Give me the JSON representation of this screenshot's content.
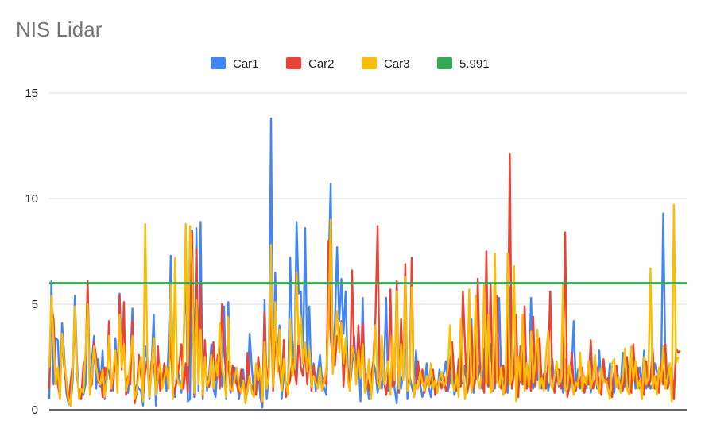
{
  "chart_data": {
    "type": "line",
    "title": "NIS Lidar",
    "xlabel": "",
    "ylabel": "",
    "ylim": [
      0,
      15
    ],
    "yticks": [
      "0",
      "5",
      "10",
      "15"
    ],
    "grid": true,
    "legend_position": "top",
    "n_points": 300,
    "threshold": {
      "name": "5.991",
      "value": 5.991,
      "color": "#34a853"
    },
    "series": [
      {
        "name": "Car1",
        "color": "#4285f4",
        "values": [
          0.5,
          6.1,
          1.2,
          3.4,
          3.3,
          1.0,
          4.1,
          2.6,
          0.8,
          0.3,
          0.2,
          1.4,
          5.4,
          2.2,
          0.6,
          1.0,
          0.7,
          1.2,
          5.9,
          0.9,
          2.3,
          3.5,
          1.0,
          2.4,
          1.1,
          2.8,
          0.5,
          2.0,
          1.8,
          1.2,
          0.9,
          3.4,
          1.2,
          5.5,
          2.1,
          3.0,
          1.0,
          0.8,
          2.2,
          4.8,
          0.6,
          1.2,
          1.0,
          0.9,
          0.2,
          3.0,
          2.4,
          0.5,
          2.1,
          4.5,
          0.2,
          1.8,
          1.0,
          1.2,
          2.2,
          0.9,
          3.1,
          7.3,
          1.2,
          0.6,
          2.0,
          1.5,
          0.8,
          3.1,
          7.0,
          0.4,
          0.5,
          8.5,
          0.6,
          8.6,
          0.9,
          8.9,
          0.5,
          2.8,
          0.9,
          1.7,
          3.1,
          1.0,
          0.6,
          2.1,
          3.4,
          1.1,
          4.9,
          0.5,
          5.1,
          0.8,
          1.1,
          2.0,
          1.4,
          0.5,
          1.3,
          1.9,
          0.4,
          0.9,
          3.6,
          2.0,
          0.8,
          1.0,
          2.0,
          0.6,
          0.1,
          5.2,
          0.5,
          1.8,
          13.8,
          1.2,
          6.5,
          2.1,
          4.0,
          0.5,
          1.7,
          1.3,
          0.9,
          7.2,
          3.3,
          2.0,
          8.9,
          5.5,
          5.6,
          2.2,
          8.6,
          2.4,
          4.9,
          1.0,
          2.2,
          0.9,
          1.8,
          2.6,
          1.4,
          1.0,
          0.7,
          6.7,
          10.7,
          2.0,
          4.1,
          7.7,
          4.2,
          6.2,
          3.6,
          5.6,
          2.0,
          1.0,
          2.1,
          3.5,
          1.8,
          2.6,
          0.4,
          5.3,
          0.9,
          1.2,
          0.5,
          1.1,
          2.3,
          1.8,
          0.8,
          1.5,
          1.0,
          1.8,
          5.3,
          0.9,
          1.1,
          2.0,
          1.0,
          0.3,
          2.7,
          1.0,
          1.8,
          4.8,
          0.5,
          1.6,
          1.1,
          0.7,
          2.8,
          1.5,
          1.2,
          0.6,
          1.0,
          2.2,
          1.1,
          0.6,
          1.6,
          1.3,
          0.8,
          1.9,
          1.4,
          1.7,
          2.3,
          0.9,
          1.4,
          2.7,
          0.7,
          1.1,
          1.8,
          1.2,
          1.3,
          2.1,
          1.0,
          1.5,
          4.3,
          0.8,
          1.6,
          1.4,
          2.2,
          1.0,
          2.9,
          1.3,
          1.1,
          3.1,
          1.7,
          1.0,
          2.0,
          5.3,
          1.5,
          1.1,
          1.8,
          0.8,
          5.8,
          1.2,
          2.1,
          1.9,
          1.0,
          1.6,
          2.8,
          1.3,
          1.2,
          1.7,
          5.3,
          1.0,
          1.9,
          1.4,
          2.7,
          1.0,
          1.3,
          1.7,
          0.9,
          1.4,
          2.4,
          1.0,
          1.8,
          1.1,
          1.6,
          0.8,
          2.4,
          1.0,
          1.3,
          1.8,
          4.2,
          1.1,
          1.9,
          1.0,
          1.5,
          1.2,
          1.0,
          2.1,
          0.8,
          1.7,
          1.9,
          1.0,
          2.8,
          1.2,
          1.7,
          1.4,
          1.0,
          2.2,
          1.3,
          0.8,
          2.0,
          1.5,
          1.0,
          2.7,
          1.1,
          1.8,
          1.0,
          1.3,
          2.4,
          1.0,
          1.6,
          2.0,
          1.1,
          2.8,
          1.0,
          1.5,
          1.0,
          1.2,
          2.2,
          1.8,
          1.0,
          1.6,
          9.3,
          2.1,
          1.0,
          2.0,
          1.3
        ]
      },
      {
        "name": "Car2",
        "color": "#ea4335",
        "values": [
          1.0,
          4.9,
          4.3,
          1.7,
          1.2,
          0.6,
          3.6,
          2.0,
          1.1,
          0.4,
          1.3,
          2.2,
          4.5,
          1.5,
          0.9,
          0.5,
          2.1,
          2.4,
          6.1,
          1.0,
          1.2,
          3.2,
          2.5,
          1.3,
          1.8,
          0.6,
          2.0,
          1.4,
          4.2,
          0.9,
          1.2,
          2.8,
          1.1,
          5.4,
          1.9,
          5.1,
          0.7,
          1.6,
          1.2,
          4.2,
          0.3,
          0.8,
          2.6,
          1.7,
          0.6,
          1.8,
          2.4,
          1.0,
          2.3,
          2.1,
          1.1,
          3.0,
          0.9,
          1.3,
          2.2,
          1.5,
          1.7,
          3.5,
          0.6,
          1.0,
          1.4,
          2.2,
          3.1,
          1.0,
          2.2,
          0.8,
          4.0,
          8.4,
          0.7,
          7.6,
          1.5,
          5.9,
          0.6,
          3.3,
          1.2,
          1.1,
          1.9,
          3.2,
          1.4,
          2.6,
          1.0,
          5.0,
          3.1,
          1.6,
          2.3,
          0.9,
          2.1,
          1.5,
          1.2,
          0.8,
          1.9,
          1.4,
          0.4,
          2.7,
          1.3,
          1.1,
          0.9,
          0.7,
          2.5,
          1.5,
          0.3,
          4.6,
          1.0,
          2.2,
          5.0,
          0.9,
          3.2,
          2.4,
          1.8,
          1.0,
          3.3,
          0.6,
          1.1,
          1.4,
          2.4,
          1.9,
          1.2,
          3.5,
          2.0,
          1.6,
          3.0,
          1.2,
          2.8,
          0.9,
          2.1,
          1.4,
          1.3,
          1.8,
          0.9,
          1.5,
          1.2,
          8.0,
          3.4,
          2.2,
          2.1,
          3.5,
          3.3,
          4.2,
          1.1,
          3.0,
          1.7,
          1.2,
          6.6,
          2.5,
          1.4,
          4.0,
          2.0,
          4.1,
          1.3,
          1.7,
          0.9,
          1.5,
          2.3,
          4.4,
          8.7,
          1.0,
          2.8,
          1.4,
          0.7,
          1.6,
          5.7,
          1.1,
          1.2,
          6.1,
          0.8,
          4.3,
          1.4,
          6.9,
          0.9,
          1.5,
          7.2,
          0.6,
          1.0,
          2.3,
          1.2,
          1.9,
          0.8,
          1.4,
          1.1,
          1.3,
          1.9,
          0.7,
          1.2,
          1.4,
          1.0,
          1.6,
          0.9,
          1.2,
          2.2,
          3.2,
          1.5,
          0.9,
          2.4,
          1.1,
          5.6,
          3.1,
          0.8,
          1.3,
          4.0,
          1.0,
          1.6,
          6.2,
          2.0,
          1.4,
          0.8,
          7.5,
          1.1,
          6.0,
          0.9,
          1.3,
          5.4,
          1.2,
          1.0,
          2.1,
          0.8,
          1.5,
          12.1,
          1.0,
          1.7,
          4.5,
          0.6,
          3.0,
          1.2,
          4.9,
          1.0,
          1.5,
          0.9,
          4.4,
          1.1,
          2.6,
          3.4,
          1.2,
          1.7,
          1.0,
          2.2,
          5.6,
          1.4,
          0.8,
          1.5,
          1.9,
          1.0,
          1.2,
          8.4,
          0.6,
          1.1,
          2.7,
          1.3,
          0.9,
          1.6,
          1.1,
          2.0,
          0.8,
          1.5,
          1.2,
          3.3,
          1.0,
          1.4,
          2.0,
          1.1,
          0.7,
          2.4,
          1.3,
          1.5,
          1.0,
          0.6,
          1.8,
          2.1,
          1.0,
          1.4,
          0.9,
          1.6,
          2.5,
          1.2,
          0.8,
          3.1,
          1.3,
          2.0,
          1.0,
          1.5,
          0.7,
          2.3,
          1.1,
          1.4,
          2.9,
          1.0,
          1.6,
          0.8,
          2.2,
          1.2,
          3.1,
          1.0,
          1.4,
          2.0,
          0.5,
          2.9,
          2.7,
          2.8
        ]
      },
      {
        "name": "Car3",
        "color": "#fbbc04",
        "values": [
          2.0,
          5.4,
          3.3,
          1.2,
          2.0,
          0.5,
          3.6,
          2.3,
          1.4,
          0.4,
          0.2,
          2.0,
          4.9,
          1.8,
          0.5,
          1.0,
          0.8,
          2.7,
          5.0,
          0.7,
          1.6,
          3.0,
          2.0,
          1.4,
          1.2,
          1.9,
          0.6,
          1.4,
          3.5,
          1.0,
          1.8,
          2.8,
          0.8,
          4.5,
          2.0,
          3.1,
          0.9,
          1.4,
          2.3,
          3.5,
          0.5,
          0.9,
          1.8,
          2.5,
          0.4,
          8.8,
          2.6,
          0.6,
          1.9,
          3.4,
          0.7,
          1.6,
          2.2,
          1.0,
          1.5,
          2.0,
          1.0,
          6.0,
          0.5,
          7.2,
          1.5,
          1.2,
          1.0,
          2.6,
          8.8,
          2.1,
          8.7,
          6.9,
          0.8,
          5.2,
          1.2,
          3.8,
          0.7,
          2.5,
          1.1,
          1.4,
          2.6,
          1.0,
          2.3,
          1.6,
          4.1,
          2.0,
          1.4,
          0.6,
          4.4,
          1.0,
          0.9,
          1.5,
          2.0,
          1.1,
          0.8,
          1.4,
          0.3,
          1.0,
          1.6,
          0.8,
          0.6,
          2.2,
          1.4,
          2.0,
          0.4,
          3.2,
          1.0,
          1.6,
          7.8,
          1.1,
          5.1,
          1.8,
          3.8,
          0.9,
          2.4,
          1.2,
          0.7,
          4.3,
          1.6,
          2.2,
          6.5,
          3.1,
          4.4,
          2.2,
          3.2,
          1.8,
          2.9,
          1.1,
          1.6,
          1.3,
          1.0,
          2.0,
          0.9,
          1.3,
          2.0,
          4.1,
          9.0,
          1.7,
          3.2,
          4.7,
          2.7,
          4.1,
          2.2,
          3.4,
          1.4,
          0.9,
          3.0,
          2.6,
          1.2,
          2.8,
          1.5,
          3.1,
          0.8,
          1.4,
          2.4,
          0.5,
          1.9,
          4.0,
          1.3,
          1.0,
          3.5,
          1.2,
          1.6,
          2.3,
          0.7,
          3.5,
          1.4,
          5.6,
          1.0,
          3.1,
          1.4,
          6.3,
          0.9,
          1.3,
          5.8,
          0.6,
          1.2,
          1.0,
          1.8,
          1.3,
          0.9,
          1.6,
          1.1,
          2.2,
          1.0,
          1.4,
          0.8,
          1.5,
          1.8,
          1.1,
          1.3,
          2.0,
          4.0,
          1.3,
          0.9,
          1.7,
          0.6,
          4.3,
          2.0,
          0.5,
          1.3,
          5.7,
          0.8,
          1.6,
          5.4,
          1.4,
          1.0,
          2.0,
          5.9,
          1.2,
          4.5,
          0.8,
          1.0,
          7.4,
          1.4,
          1.1,
          2.0,
          0.7,
          1.3,
          7.4,
          1.2,
          1.5,
          6.8,
          0.4,
          2.5,
          1.4,
          4.5,
          0.9,
          2.2,
          1.1,
          3.7,
          1.3,
          2.3,
          3.8,
          1.0,
          1.5,
          0.9,
          2.6,
          3.7,
          1.3,
          1.0,
          1.6,
          2.3,
          1.2,
          1.4,
          5.9,
          0.9,
          1.0,
          2.1,
          1.4,
          0.7,
          1.3,
          1.1,
          2.7,
          0.9,
          1.6,
          1.2,
          2.3,
          1.0,
          1.5,
          2.6,
          1.2,
          0.8,
          2.0,
          1.3,
          1.4,
          1.0,
          0.5,
          2.2,
          2.4,
          1.1,
          1.6,
          0.8,
          1.5,
          2.9,
          1.0,
          0.7,
          3.0,
          1.4,
          2.3,
          1.0,
          1.4,
          0.5,
          2.5,
          1.2,
          1.5,
          6.7,
          1.0,
          1.6,
          0.7,
          2.0,
          1.3,
          3.0,
          1.0,
          1.5,
          2.2,
          0.4,
          9.7,
          2.2,
          2.5
        ]
      }
    ]
  }
}
